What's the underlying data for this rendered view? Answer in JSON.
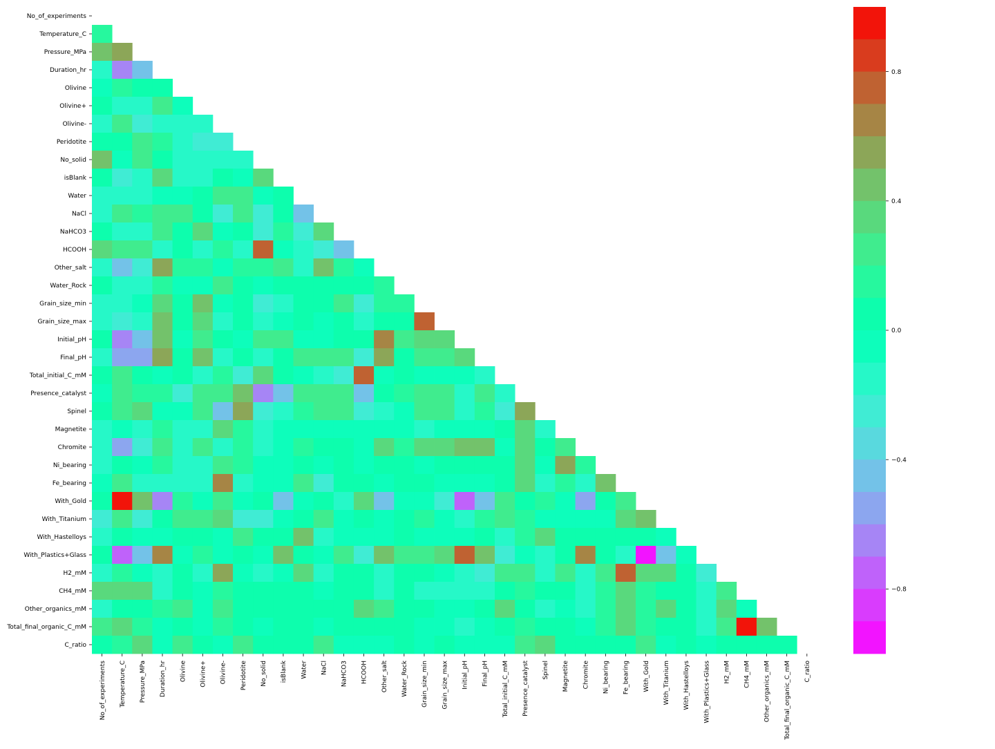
{
  "chart_data": {
    "type": "heatmap",
    "mask": "upper-triangle",
    "labels": [
      "No_of_experiments",
      "Temperature_C",
      "Pressure_MPa",
      "Duration_hr",
      "Olivine",
      "Olivine+",
      "Olivine-",
      "Peridotite",
      "No_solid",
      "isBlank",
      "Water",
      "NaCl",
      "NaHCO3",
      "HCOOH",
      "Other_salt",
      "Water_Rock",
      "Grain_size_min",
      "Grain_size_max",
      "Initial_pH",
      "Final_pH",
      "Total_initial_C_mM",
      "Presence_catalyst",
      "Spinel",
      "Magnetite",
      "Chromite",
      "Ni_bearing",
      "Fe_bearing",
      "With_Gold",
      "With_Titanium",
      "With_Hastelloys",
      "With_Plastics+Glass",
      "H2_mM",
      "CH4_mM",
      "Other_organics_mM",
      "Total_final_organic_C_mM",
      "C_ratio"
    ],
    "matrix": [
      [],
      [
        0.15
      ],
      [
        0.45,
        0.55
      ],
      [
        -0.2,
        -0.65,
        -0.45
      ],
      [
        -0.1,
        0.1,
        0.0,
        0.0
      ],
      [
        0.0,
        -0.2,
        -0.2,
        0.2,
        -0.1
      ],
      [
        -0.2,
        0.2,
        -0.3,
        -0.2,
        -0.2,
        -0.2
      ],
      [
        0.0,
        0.05,
        0.25,
        0.15,
        -0.2,
        -0.3,
        -0.3
      ],
      [
        0.45,
        -0.05,
        0.25,
        0.0,
        -0.2,
        -0.2,
        -0.2,
        -0.2
      ],
      [
        0.0,
        -0.3,
        -0.2,
        0.35,
        -0.2,
        -0.2,
        0.05,
        -0.1,
        0.35
      ],
      [
        -0.15,
        -0.2,
        -0.2,
        -0.1,
        -0.1,
        0.0,
        0.25,
        0.25,
        -0.1,
        0.0
      ],
      [
        -0.15,
        0.2,
        0.1,
        0.25,
        0.25,
        0.0,
        -0.25,
        0.25,
        -0.25,
        0.0,
        -0.45
      ],
      [
        0.0,
        -0.15,
        -0.15,
        0.25,
        0.05,
        0.35,
        -0.1,
        0.05,
        -0.3,
        0.1,
        -0.3,
        0.35
      ],
      [
        0.3,
        0.2,
        0.25,
        -0.2,
        0.0,
        -0.2,
        0.1,
        -0.2,
        0.7,
        -0.1,
        -0.2,
        -0.3,
        -0.45
      ],
      [
        -0.15,
        -0.45,
        -0.3,
        0.55,
        0.1,
        0.1,
        -0.1,
        0.1,
        0.1,
        0.25,
        -0.2,
        0.45,
        0.15,
        -0.1
      ],
      [
        0.0,
        -0.15,
        -0.15,
        0.1,
        -0.05,
        -0.05,
        0.25,
        0.0,
        -0.1,
        0.0,
        0.05,
        0.05,
        0.05,
        0.0,
        0.15
      ],
      [
        -0.15,
        -0.2,
        -0.05,
        0.35,
        0.0,
        0.45,
        -0.1,
        0.05,
        -0.3,
        -0.2,
        0.05,
        0.05,
        0.2,
        -0.3,
        0.15,
        0.1
      ],
      [
        -0.15,
        -0.3,
        -0.2,
        0.45,
        0.0,
        0.35,
        -0.2,
        0.05,
        -0.2,
        -0.1,
        0.05,
        -0.05,
        0.05,
        -0.2,
        0.05,
        0.05,
        0.75
      ],
      [
        0.0,
        -0.65,
        -0.45,
        0.45,
        -0.1,
        0.25,
        0.0,
        -0.1,
        0.2,
        0.25,
        -0.05,
        -0.05,
        0.0,
        0.0,
        0.65,
        0.2,
        0.35,
        0.35
      ],
      [
        -0.2,
        -0.55,
        -0.55,
        0.55,
        0.0,
        0.45,
        -0.2,
        0.05,
        -0.2,
        0.05,
        0.2,
        0.25,
        0.2,
        -0.3,
        0.55,
        0.05,
        0.25,
        0.25,
        0.35
      ],
      [
        0.0,
        0.2,
        0.05,
        -0.1,
        0.05,
        -0.15,
        0.15,
        -0.3,
        0.35,
        0.05,
        -0.1,
        -0.2,
        -0.25,
        0.7,
        -0.1,
        0.0,
        -0.1,
        -0.1,
        -0.1,
        -0.15
      ],
      [
        -0.1,
        0.2,
        0.1,
        0.1,
        -0.3,
        0.2,
        0.2,
        0.45,
        -0.65,
        -0.45,
        0.25,
        0.25,
        0.2,
        -0.45,
        0.0,
        0.15,
        0.25,
        0.2,
        -0.2,
        0.2,
        -0.2
      ],
      [
        0.05,
        0.2,
        0.35,
        -0.05,
        -0.1,
        0.2,
        -0.45,
        0.55,
        -0.3,
        -0.2,
        0.1,
        0.25,
        0.2,
        -0.25,
        -0.2,
        -0.1,
        0.25,
        0.25,
        -0.2,
        0.1,
        -0.3,
        0.55
      ],
      [
        -0.15,
        -0.05,
        -0.2,
        0.1,
        -0.15,
        -0.2,
        0.35,
        0.15,
        -0.2,
        -0.1,
        -0.05,
        -0.05,
        -0.05,
        -0.05,
        -0.05,
        -0.05,
        -0.2,
        -0.1,
        -0.05,
        -0.05,
        0.05,
        0.35,
        -0.2
      ],
      [
        -0.15,
        -0.55,
        -0.3,
        0.2,
        -0.15,
        0.25,
        -0.15,
        0.15,
        -0.2,
        -0.1,
        0.15,
        0.05,
        0.05,
        -0.05,
        0.35,
        0.15,
        0.3,
        0.3,
        0.45,
        0.45,
        -0.1,
        0.35,
        0.0,
        0.25
      ],
      [
        -0.2,
        0.05,
        -0.1,
        0.1,
        -0.15,
        -0.15,
        0.25,
        0.15,
        -0.1,
        -0.1,
        0.05,
        -0.1,
        0.0,
        -0.05,
        0.0,
        0.0,
        -0.05,
        0.05,
        0.0,
        0.0,
        0.0,
        0.3,
        -0.05,
        0.55,
        0.15
      ],
      [
        -0.1,
        0.2,
        -0.2,
        -0.2,
        -0.15,
        -0.15,
        0.65,
        -0.2,
        -0.1,
        -0.1,
        0.25,
        -0.3,
        0.0,
        0.0,
        -0.1,
        0.05,
        0.0,
        -0.1,
        -0.1,
        -0.1,
        0.05,
        0.3,
        -0.2,
        0.1,
        -0.15,
        0.45
      ],
      [
        0.05,
        0.9,
        0.45,
        -0.65,
        0.15,
        -0.1,
        0.2,
        -0.05,
        0.05,
        -0.45,
        -0.1,
        0.05,
        -0.15,
        0.35,
        -0.45,
        -0.1,
        -0.1,
        -0.3,
        -0.75,
        -0.45,
        0.25,
        0.05,
        0.15,
        -0.05,
        -0.55,
        0.05,
        0.25
      ],
      [
        -0.25,
        0.25,
        -0.25,
        0.0,
        0.2,
        0.2,
        0.3,
        -0.25,
        -0.25,
        -0.05,
        0.0,
        0.25,
        -0.05,
        0.05,
        -0.05,
        0.05,
        0.15,
        -0.05,
        -0.2,
        0.1,
        0.25,
        0.1,
        -0.05,
        -0.05,
        -0.05,
        -0.05,
        0.3,
        0.45
      ],
      [
        -0.15,
        0.05,
        -0.1,
        -0.1,
        0.0,
        0.0,
        -0.1,
        0.25,
        0.0,
        0.0,
        0.45,
        -0.2,
        -0.05,
        -0.05,
        -0.05,
        0.0,
        -0.1,
        -0.05,
        -0.1,
        0.05,
        -0.15,
        0.15,
        0.3,
        0.0,
        0.0,
        0.0,
        0.0,
        0.05,
        -0.1
      ],
      [
        0.0,
        -0.75,
        -0.45,
        0.6,
        -0.1,
        0.15,
        -0.1,
        0.05,
        -0.05,
        0.45,
        0.05,
        -0.05,
        0.25,
        -0.25,
        0.45,
        0.2,
        0.2,
        0.35,
        0.75,
        0.45,
        -0.25,
        -0.05,
        -0.15,
        0.05,
        0.6,
        0.0,
        -0.2,
        -0.95,
        -0.45,
        -0.05
      ],
      [
        -0.15,
        0.1,
        -0.1,
        -0.2,
        0.0,
        -0.2,
        0.55,
        -0.1,
        -0.2,
        -0.1,
        0.3,
        -0.2,
        0.0,
        0.05,
        -0.2,
        0.05,
        0.0,
        -0.1,
        -0.2,
        -0.3,
        0.25,
        0.25,
        -0.2,
        0.2,
        -0.15,
        0.25,
        0.75,
        0.3,
        0.35,
        0.0,
        -0.3
      ],
      [
        0.3,
        0.3,
        0.3,
        -0.2,
        0.0,
        -0.1,
        0.15,
        0.05,
        0.0,
        0.0,
        0.05,
        -0.05,
        0.05,
        0.0,
        -0.15,
        0.0,
        -0.15,
        -0.15,
        -0.15,
        -0.2,
        0.0,
        0.15,
        0.05,
        0.05,
        -0.15,
        0.1,
        0.3,
        0.15,
        0.0,
        0.0,
        -0.15,
        0.2
      ],
      [
        -0.15,
        0.05,
        0.0,
        0.1,
        0.2,
        -0.1,
        0.2,
        0.0,
        0.0,
        0.0,
        0.05,
        0.05,
        0.0,
        0.35,
        0.25,
        0.0,
        0.0,
        -0.1,
        -0.1,
        0.05,
        0.3,
        0.05,
        -0.15,
        -0.05,
        -0.15,
        0.1,
        0.3,
        0.1,
        0.3,
        0.0,
        -0.15,
        0.3,
        -0.05
      ],
      [
        0.2,
        0.3,
        0.15,
        -0.05,
        0.0,
        -0.05,
        0.15,
        0.05,
        -0.05,
        0.0,
        0.05,
        -0.05,
        0.05,
        0.05,
        0.0,
        0.05,
        -0.1,
        -0.1,
        -0.2,
        -0.1,
        0.0,
        0.15,
        0.0,
        0.0,
        -0.1,
        0.15,
        0.35,
        0.15,
        0.0,
        0.0,
        -0.15,
        0.25,
        0.9,
        0.45
      ],
      [
        0.05,
        0.1,
        0.35,
        -0.05,
        0.2,
        0.0,
        -0.1,
        0.2,
        0.0,
        0.0,
        0.0,
        0.2,
        -0.1,
        -0.1,
        -0.1,
        0.0,
        -0.1,
        0.0,
        -0.1,
        -0.1,
        -0.1,
        0.2,
        0.3,
        0.0,
        0.0,
        0.0,
        0.0,
        0.2,
        -0.1,
        0.0,
        -0.1,
        0.05,
        0.05,
        0.05,
        0.05
      ]
    ],
    "colorbar": {
      "colormap": "rainbow",
      "vmin": -1.0,
      "vmax": 1.0,
      "ticks": [
        "0.8",
        "0.4",
        "0.0",
        "−0.4",
        "−0.8"
      ],
      "tick_values": [
        0.8,
        0.4,
        0.0,
        -0.4,
        -0.8
      ]
    }
  }
}
